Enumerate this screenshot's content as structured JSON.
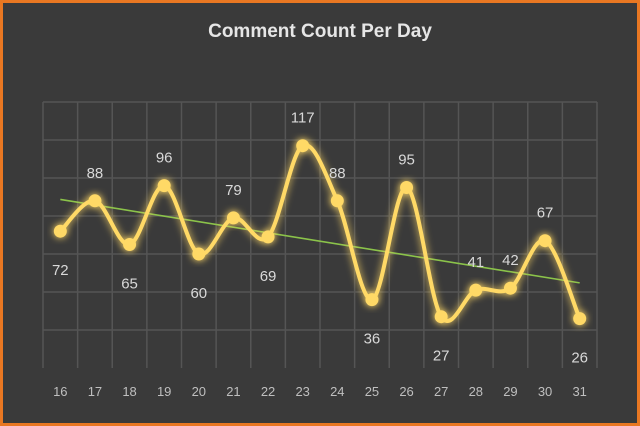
{
  "chart_data": {
    "type": "line",
    "title": "Comment Count Per Day",
    "xlabel": "",
    "ylabel": "",
    "categories": [
      "16",
      "17",
      "18",
      "19",
      "20",
      "21",
      "22",
      "23",
      "24",
      "25",
      "26",
      "27",
      "28",
      "29",
      "30",
      "31"
    ],
    "series": [
      {
        "values": [
          72,
          88,
          65,
          96,
          60,
          79,
          69,
          117,
          88,
          36,
          95,
          27,
          41,
          42,
          67,
          26
        ],
        "color": "#ffd966"
      }
    ],
    "trendline": {
      "type": "linear",
      "color": "#8bc34a"
    },
    "ylim": [
      0,
      140
    ],
    "grid": true,
    "legend": "none",
    "label_positions": [
      "below",
      "above",
      "below",
      "above",
      "below",
      "above",
      "below",
      "above",
      "above",
      "below",
      "above",
      "below",
      "above",
      "above",
      "above",
      "below"
    ]
  }
}
